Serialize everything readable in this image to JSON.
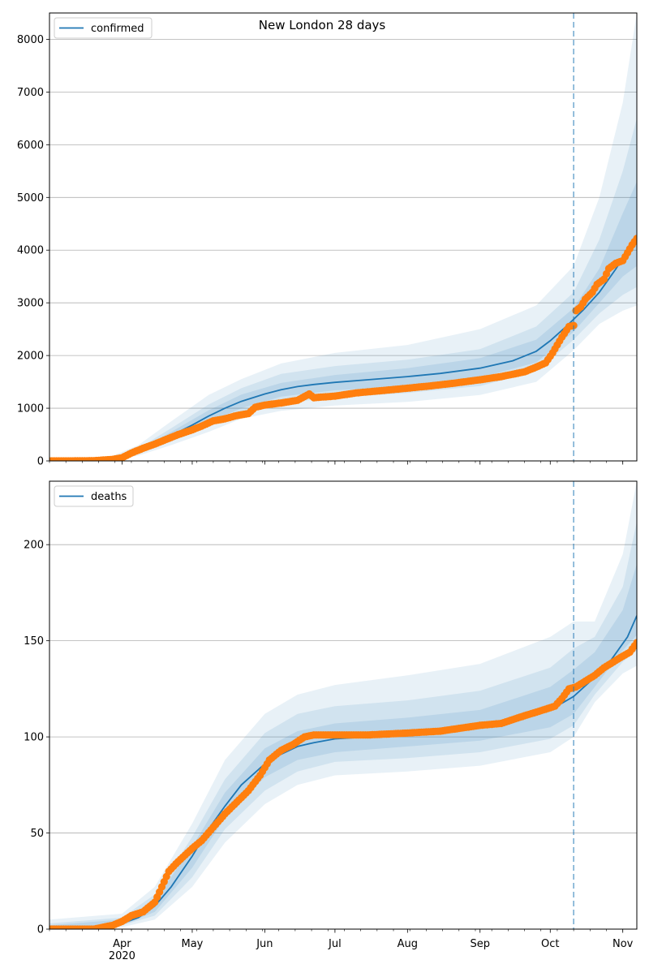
{
  "title": "New London 28 days",
  "colors": {
    "model": "#1f77b4",
    "observed": "#ff7f0e",
    "band": "#1f77b4",
    "grid": "#b0b0b0"
  },
  "x_axis": {
    "ticks": [
      {
        "label": "Apr",
        "date": "2020-04-01"
      },
      {
        "label": "May",
        "date": "2020-05-01"
      },
      {
        "label": "Jun",
        "date": "2020-06-01"
      },
      {
        "label": "Jul",
        "date": "2020-07-01"
      },
      {
        "label": "Aug",
        "date": "2020-08-01"
      },
      {
        "label": "Sep",
        "date": "2020-09-01"
      },
      {
        "label": "Oct",
        "date": "2020-10-01"
      },
      {
        "label": "Nov",
        "date": "2020-11-01"
      }
    ],
    "year_label": "2020",
    "range": [
      "2020-03-01",
      "2020-11-07"
    ]
  },
  "forecast_date": "2020-10-11",
  "chart_data": [
    {
      "type": "line",
      "legend": "confirmed",
      "legend_position": "top-left",
      "grid": true,
      "ylim": [
        0,
        8500
      ],
      "y_ticks": [
        0,
        1000,
        2000,
        3000,
        4000,
        5000,
        6000,
        7000,
        8000
      ],
      "model": [
        [
          "2020-03-01",
          0
        ],
        [
          "2020-03-15",
          0
        ],
        [
          "2020-03-25",
          20
        ],
        [
          "2020-04-01",
          80
        ],
        [
          "2020-04-08",
          180
        ],
        [
          "2020-04-15",
          330
        ],
        [
          "2020-04-22",
          480
        ],
        [
          "2020-05-01",
          680
        ],
        [
          "2020-05-08",
          850
        ],
        [
          "2020-05-15",
          1000
        ],
        [
          "2020-05-22",
          1130
        ],
        [
          "2020-06-01",
          1270
        ],
        [
          "2020-06-08",
          1350
        ],
        [
          "2020-06-15",
          1410
        ],
        [
          "2020-06-22",
          1450
        ],
        [
          "2020-07-01",
          1490
        ],
        [
          "2020-07-15",
          1540
        ],
        [
          "2020-08-01",
          1600
        ],
        [
          "2020-08-15",
          1660
        ],
        [
          "2020-09-01",
          1760
        ],
        [
          "2020-09-15",
          1900
        ],
        [
          "2020-09-25",
          2080
        ],
        [
          "2020-10-01",
          2280
        ],
        [
          "2020-10-08",
          2560
        ],
        [
          "2020-10-15",
          2860
        ],
        [
          "2020-10-22",
          3200
        ],
        [
          "2020-10-29",
          3640
        ],
        [
          "2020-11-03",
          3980
        ],
        [
          "2020-11-07",
          4250
        ]
      ],
      "bands": [
        [
          [
            "2020-03-01",
            0,
            0
          ],
          [
            "2020-03-25",
            10,
            40
          ],
          [
            "2020-04-08",
            100,
            300
          ],
          [
            "2020-04-22",
            300,
            750
          ],
          [
            "2020-05-08",
            550,
            1250
          ],
          [
            "2020-05-22",
            800,
            1550
          ],
          [
            "2020-06-08",
            950,
            1850
          ],
          [
            "2020-07-01",
            1050,
            2050
          ],
          [
            "2020-08-01",
            1120,
            2200
          ],
          [
            "2020-09-01",
            1250,
            2500
          ],
          [
            "2020-09-25",
            1500,
            2950
          ],
          [
            "2020-10-11",
            2100,
            3700
          ],
          [
            "2020-10-22",
            2600,
            5000
          ],
          [
            "2020-11-01",
            2850,
            6800
          ],
          [
            "2020-11-07",
            2950,
            8500
          ]
        ],
        [
          [
            "2020-03-01",
            0,
            0
          ],
          [
            "2020-03-25",
            14,
            30
          ],
          [
            "2020-04-08",
            130,
            240
          ],
          [
            "2020-04-22",
            370,
            620
          ],
          [
            "2020-05-08",
            650,
            1070
          ],
          [
            "2020-05-22",
            900,
            1380
          ],
          [
            "2020-06-08",
            1100,
            1650
          ],
          [
            "2020-07-01",
            1200,
            1800
          ],
          [
            "2020-08-01",
            1290,
            1920
          ],
          [
            "2020-09-01",
            1420,
            2120
          ],
          [
            "2020-09-25",
            1700,
            2550
          ],
          [
            "2020-10-11",
            2300,
            3200
          ],
          [
            "2020-10-22",
            2800,
            4200
          ],
          [
            "2020-11-01",
            3150,
            5500
          ],
          [
            "2020-11-07",
            3300,
            6500
          ]
        ],
        [
          [
            "2020-03-01",
            0,
            0
          ],
          [
            "2020-03-25",
            17,
            25
          ],
          [
            "2020-04-08",
            155,
            210
          ],
          [
            "2020-04-22",
            420,
            550
          ],
          [
            "2020-05-08",
            740,
            960
          ],
          [
            "2020-05-22",
            1000,
            1260
          ],
          [
            "2020-06-08",
            1220,
            1480
          ],
          [
            "2020-07-01",
            1340,
            1630
          ],
          [
            "2020-08-01",
            1420,
            1760
          ],
          [
            "2020-09-01",
            1580,
            1950
          ],
          [
            "2020-09-25",
            1870,
            2300
          ],
          [
            "2020-10-11",
            2450,
            2900
          ],
          [
            "2020-10-22",
            3000,
            3650
          ],
          [
            "2020-11-01",
            3500,
            4700
          ],
          [
            "2020-11-07",
            3700,
            5300
          ]
        ]
      ],
      "observed": [
        [
          "2020-03-01",
          0
        ],
        [
          "2020-03-10",
          0
        ],
        [
          "2020-03-20",
          5
        ],
        [
          "2020-03-28",
          30
        ],
        [
          "2020-04-01",
          60
        ],
        [
          "2020-04-05",
          150
        ],
        [
          "2020-04-10",
          240
        ],
        [
          "2020-04-15",
          320
        ],
        [
          "2020-04-20",
          410
        ],
        [
          "2020-04-25",
          500
        ],
        [
          "2020-05-01",
          590
        ],
        [
          "2020-05-05",
          660
        ],
        [
          "2020-05-10",
          760
        ],
        [
          "2020-05-15",
          800
        ],
        [
          "2020-05-20",
          860
        ],
        [
          "2020-05-25",
          900
        ],
        [
          "2020-05-28",
          1020
        ],
        [
          "2020-06-01",
          1060
        ],
        [
          "2020-06-08",
          1100
        ],
        [
          "2020-06-15",
          1150
        ],
        [
          "2020-06-20",
          1270
        ],
        [
          "2020-06-22",
          1200
        ],
        [
          "2020-07-01",
          1230
        ],
        [
          "2020-07-10",
          1290
        ],
        [
          "2020-07-20",
          1330
        ],
        [
          "2020-08-01",
          1380
        ],
        [
          "2020-08-10",
          1420
        ],
        [
          "2020-08-20",
          1470
        ],
        [
          "2020-09-01",
          1540
        ],
        [
          "2020-09-10",
          1600
        ],
        [
          "2020-09-20",
          1690
        ],
        [
          "2020-09-25",
          1780
        ],
        [
          "2020-09-29",
          1860
        ],
        [
          "2020-10-02",
          2050
        ],
        [
          "2020-10-04",
          2200
        ],
        [
          "2020-10-06",
          2350
        ],
        [
          "2020-10-09",
          2550
        ],
        [
          "2020-10-11",
          2570
        ],
        [
          "2020-10-12",
          2850
        ],
        [
          "2020-10-14",
          2920
        ],
        [
          "2020-10-16",
          3070
        ],
        [
          "2020-10-19",
          3200
        ],
        [
          "2020-10-21",
          3350
        ],
        [
          "2020-10-24",
          3450
        ],
        [
          "2020-10-26",
          3650
        ],
        [
          "2020-10-29",
          3750
        ],
        [
          "2020-11-01",
          3800
        ],
        [
          "2020-11-03",
          3950
        ],
        [
          "2020-11-05",
          4100
        ],
        [
          "2020-11-07",
          4220
        ]
      ]
    },
    {
      "type": "line",
      "legend": "deaths",
      "legend_position": "top-left",
      "grid": true,
      "ylim": [
        0,
        233
      ],
      "y_ticks": [
        0,
        50,
        100,
        150,
        200
      ],
      "model": [
        [
          "2020-03-01",
          0
        ],
        [
          "2020-03-20",
          1
        ],
        [
          "2020-04-01",
          3
        ],
        [
          "2020-04-08",
          6
        ],
        [
          "2020-04-15",
          12
        ],
        [
          "2020-04-22",
          22
        ],
        [
          "2020-05-01",
          38
        ],
        [
          "2020-05-08",
          52
        ],
        [
          "2020-05-15",
          64
        ],
        [
          "2020-05-22",
          75
        ],
        [
          "2020-06-01",
          86
        ],
        [
          "2020-06-08",
          91
        ],
        [
          "2020-06-15",
          95
        ],
        [
          "2020-06-22",
          97
        ],
        [
          "2020-07-01",
          99
        ],
        [
          "2020-07-15",
          100
        ],
        [
          "2020-08-01",
          102
        ],
        [
          "2020-08-15",
          103
        ],
        [
          "2020-09-01",
          105
        ],
        [
          "2020-09-15",
          108
        ],
        [
          "2020-10-01",
          114
        ],
        [
          "2020-10-11",
          121
        ],
        [
          "2020-10-20",
          131
        ],
        [
          "2020-10-27",
          140
        ],
        [
          "2020-11-03",
          152
        ],
        [
          "2020-11-07",
          163
        ]
      ],
      "bands": [
        [
          [
            "2020-03-01",
            0,
            5
          ],
          [
            "2020-04-01",
            1,
            8
          ],
          [
            "2020-04-15",
            5,
            22
          ],
          [
            "2020-05-01",
            22,
            55
          ],
          [
            "2020-05-15",
            45,
            88
          ],
          [
            "2020-06-01",
            65,
            112
          ],
          [
            "2020-06-15",
            75,
            122
          ],
          [
            "2020-07-01",
            80,
            127
          ],
          [
            "2020-08-01",
            82,
            132
          ],
          [
            "2020-09-01",
            85,
            138
          ],
          [
            "2020-10-01",
            92,
            152
          ],
          [
            "2020-10-11",
            100,
            160
          ],
          [
            "2020-10-20",
            118,
            160
          ],
          [
            "2020-11-01",
            133,
            195
          ],
          [
            "2020-11-07",
            137,
            233
          ]
        ],
        [
          [
            "2020-03-01",
            0,
            3
          ],
          [
            "2020-04-01",
            2,
            6
          ],
          [
            "2020-04-15",
            7,
            18
          ],
          [
            "2020-05-01",
            27,
            48
          ],
          [
            "2020-05-15",
            52,
            78
          ],
          [
            "2020-06-01",
            72,
            102
          ],
          [
            "2020-06-15",
            82,
            112
          ],
          [
            "2020-07-01",
            87,
            116
          ],
          [
            "2020-08-01",
            89,
            119
          ],
          [
            "2020-09-01",
            92,
            124
          ],
          [
            "2020-10-01",
            99,
            136
          ],
          [
            "2020-10-11",
            106,
            146
          ],
          [
            "2020-10-20",
            122,
            152
          ],
          [
            "2020-11-01",
            139,
            178
          ],
          [
            "2020-11-07",
            145,
            212
          ]
        ],
        [
          [
            "2020-03-01",
            0,
            2
          ],
          [
            "2020-04-01",
            2,
            5
          ],
          [
            "2020-04-15",
            9,
            15
          ],
          [
            "2020-05-01",
            32,
            43
          ],
          [
            "2020-05-15",
            58,
            71
          ],
          [
            "2020-06-01",
            79,
            94
          ],
          [
            "2020-06-15",
            88,
            103
          ],
          [
            "2020-07-01",
            92,
            107
          ],
          [
            "2020-08-01",
            95,
            110
          ],
          [
            "2020-09-01",
            98,
            114
          ],
          [
            "2020-10-01",
            105,
            126
          ],
          [
            "2020-10-11",
            112,
            135
          ],
          [
            "2020-10-20",
            126,
            144
          ],
          [
            "2020-11-01",
            145,
            166
          ],
          [
            "2020-11-07",
            153,
            190
          ]
        ]
      ],
      "observed": [
        [
          "2020-03-01",
          0
        ],
        [
          "2020-03-20",
          0
        ],
        [
          "2020-03-28",
          2
        ],
        [
          "2020-04-01",
          4
        ],
        [
          "2020-04-05",
          7
        ],
        [
          "2020-04-10",
          9
        ],
        [
          "2020-04-15",
          14
        ],
        [
          "2020-04-18",
          22
        ],
        [
          "2020-04-21",
          30
        ],
        [
          "2020-04-24",
          34
        ],
        [
          "2020-05-01",
          42
        ],
        [
          "2020-05-05",
          46
        ],
        [
          "2020-05-10",
          53
        ],
        [
          "2020-05-15",
          60
        ],
        [
          "2020-05-20",
          66
        ],
        [
          "2020-05-25",
          72
        ],
        [
          "2020-05-30",
          80
        ],
        [
          "2020-06-03",
          88
        ],
        [
          "2020-06-08",
          93
        ],
        [
          "2020-06-13",
          96
        ],
        [
          "2020-06-18",
          100
        ],
        [
          "2020-06-22",
          101
        ],
        [
          "2020-07-01",
          101
        ],
        [
          "2020-07-15",
          101
        ],
        [
          "2020-08-01",
          102
        ],
        [
          "2020-08-15",
          103
        ],
        [
          "2020-09-01",
          106
        ],
        [
          "2020-09-10",
          107
        ],
        [
          "2020-09-20",
          111
        ],
        [
          "2020-09-28",
          114
        ],
        [
          "2020-10-03",
          116
        ],
        [
          "2020-10-06",
          120
        ],
        [
          "2020-10-09",
          125
        ],
        [
          "2020-10-12",
          126
        ],
        [
          "2020-10-16",
          129
        ],
        [
          "2020-10-20",
          132
        ],
        [
          "2020-10-24",
          136
        ],
        [
          "2020-10-28",
          139
        ],
        [
          "2020-11-01",
          142
        ],
        [
          "2020-11-04",
          144
        ],
        [
          "2020-11-07",
          149
        ]
      ]
    }
  ]
}
